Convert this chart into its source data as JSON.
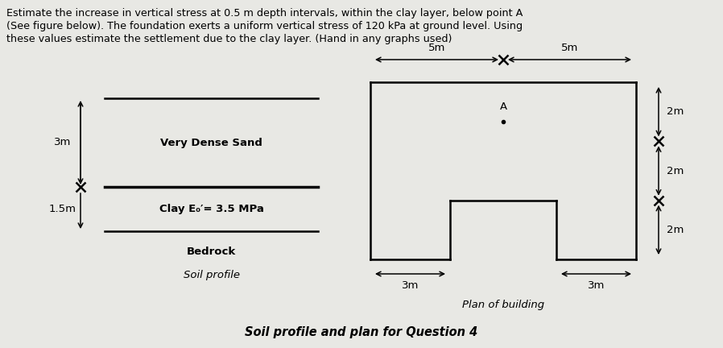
{
  "title_text": "Soil profile and plan for Question 4",
  "question_text": [
    "Estimate the increase in vertical stress at 0.5 m depth intervals, within the clay layer, below point A",
    "(See figure below). The foundation exerts a uniform vertical stress of 120 kPa at ground level. Using",
    "these values estimate the settlement due to the clay layer. (Hand in any graphs used)"
  ],
  "bg_color": "#e8e8e4",
  "label_sand": "Very Dense Sand",
  "label_clay": "Clay E₀′= 3.5 MPa",
  "label_bedrock": "Bedrock",
  "label_soil_profile": "Soil profile",
  "dim_3m_sand": "3m",
  "dim_15m_clay": "1.5m",
  "label_plan": "Plan of building",
  "dim_5m_left": "5m",
  "dim_5m_right": "5m",
  "dim_3m_bl": "3m",
  "dim_3m_br": "3m",
  "dim_2m_top": "2m",
  "dim_2m_mid": "2m",
  "dim_2m_bot": "2m",
  "label_A": "A",
  "font_size_question": 9.2,
  "font_size_labels": 9.5,
  "font_size_title": 10.5
}
